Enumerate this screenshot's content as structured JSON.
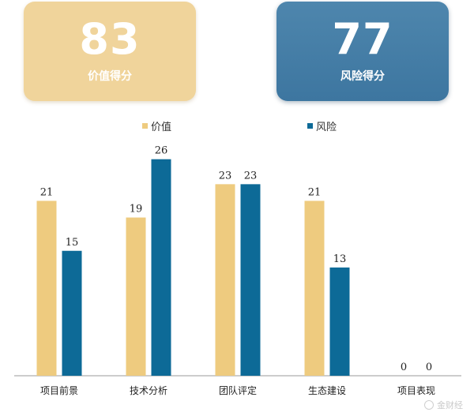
{
  "cards": {
    "value": {
      "score": "83",
      "label": "价值得分",
      "color": "#f0d49b"
    },
    "risk": {
      "score": "77",
      "label": "风险得分",
      "color": "#4e86ad"
    }
  },
  "watermark": {
    "text": "金财经"
  },
  "chart_data": {
    "type": "bar",
    "categories": [
      "项目前景",
      "技术分析",
      "团队评定",
      "生态建设",
      "项目表现"
    ],
    "series": [
      {
        "name": "价值",
        "values": [
          21,
          19,
          23,
          21,
          0
        ],
        "color": "#eecb7f"
      },
      {
        "name": "风险",
        "values": [
          15,
          26,
          23,
          13,
          0
        ],
        "color": "#0d6a97"
      }
    ],
    "ylim": [
      0,
      30
    ],
    "legend_position": "top-center",
    "grid": false,
    "data_labels": true
  }
}
